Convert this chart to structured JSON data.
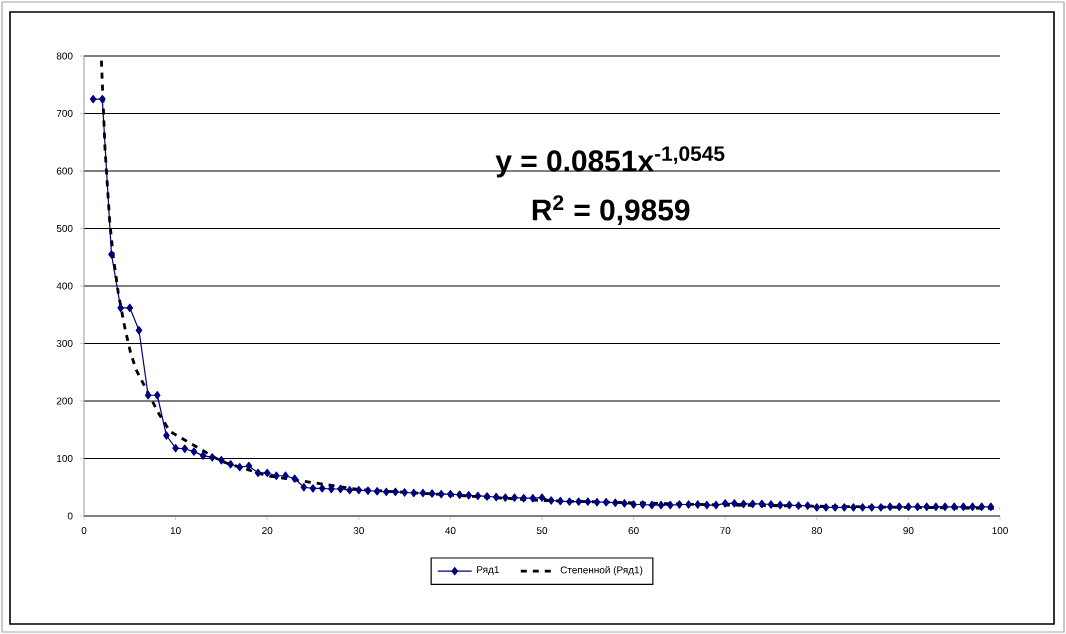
{
  "chart_data": {
    "type": "line",
    "x": [
      1,
      2,
      3,
      4,
      5,
      6,
      7,
      8,
      9,
      10,
      11,
      12,
      13,
      14,
      15,
      16,
      17,
      18,
      19,
      20,
      21,
      22,
      23,
      24,
      25,
      26,
      27,
      28,
      29,
      30,
      31,
      32,
      33,
      34,
      35,
      36,
      37,
      38,
      39,
      40,
      41,
      42,
      43,
      44,
      45,
      46,
      47,
      48,
      49,
      50,
      51,
      52,
      53,
      54,
      55,
      56,
      57,
      58,
      59,
      60,
      61,
      62,
      63,
      64,
      65,
      66,
      67,
      68,
      69,
      70,
      71,
      72,
      73,
      74,
      75,
      76,
      77,
      78,
      79,
      80,
      81,
      82,
      83,
      84,
      85,
      86,
      87,
      88,
      89,
      90,
      91,
      92,
      93,
      94,
      95,
      96,
      97,
      98,
      99
    ],
    "series": [
      {
        "name": "Ряд1",
        "color": "#000080",
        "marker": "diamond",
        "line_style": "solid",
        "values": [
          725,
          725,
          455,
          362,
          362,
          323,
          210,
          210,
          140,
          118,
          117,
          112,
          105,
          102,
          97,
          90,
          85,
          87,
          75,
          75,
          70,
          70,
          65,
          50,
          48,
          48,
          47,
          47,
          45,
          45,
          44,
          43,
          42,
          42,
          41,
          40,
          40,
          39,
          38,
          38,
          37,
          36,
          35,
          34,
          33,
          32,
          32,
          31,
          31,
          32,
          27,
          26,
          25,
          25,
          25,
          24,
          24,
          23,
          22,
          20,
          20,
          19,
          19,
          19,
          20,
          20,
          20,
          19,
          19,
          22,
          22,
          21,
          21,
          21,
          20,
          19,
          19,
          18,
          18,
          15,
          15,
          15,
          15,
          15,
          15,
          15,
          15,
          16,
          16,
          16,
          16,
          16,
          16,
          16,
          16,
          16,
          16,
          16,
          16
        ]
      },
      {
        "name": "Степенной (Ряд1)",
        "color": "#000000",
        "marker": "none",
        "line_style": "dashed",
        "x": [
          1.9,
          2.3,
          2.8,
          3.2,
          3.75,
          4.5,
          5.1,
          5.7,
          8.2,
          9.4,
          15,
          20,
          30,
          50,
          70,
          100
        ],
        "values": [
          792,
          636,
          514,
          451,
          387,
          324,
          283,
          254,
          177,
          147,
          95,
          70,
          46,
          27,
          19,
          13
        ]
      }
    ],
    "xlim": [
      0,
      100
    ],
    "xticks": [
      0,
      10,
      20,
      30,
      40,
      50,
      60,
      70,
      80,
      90,
      100
    ],
    "ylim": [
      0,
      800
    ],
    "yticks": [
      0,
      100,
      200,
      300,
      400,
      500,
      600,
      700,
      800
    ],
    "grid": "y",
    "legend": "bottom",
    "annotations": [
      "y = 0.0851x$^{-1,0545}$",
      "R$^{2}$ = 0,9859"
    ]
  }
}
